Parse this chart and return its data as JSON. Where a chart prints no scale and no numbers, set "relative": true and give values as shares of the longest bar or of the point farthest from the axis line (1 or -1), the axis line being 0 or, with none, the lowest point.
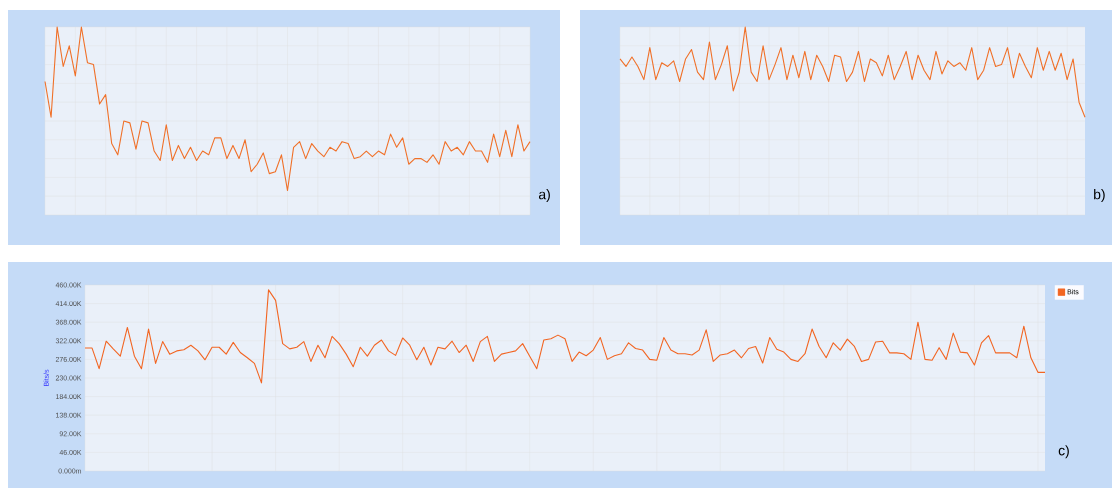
{
  "chart_data": [
    {
      "type": "line",
      "relative": true,
      "color": "#f07028",
      "grid": true,
      "tick_labels": false,
      "annotations": [
        "a)"
      ],
      "categories": [
        null,
        null,
        null,
        null,
        null,
        null,
        null,
        null,
        null,
        null,
        null,
        null,
        null,
        null,
        null,
        null,
        null,
        null,
        null,
        null,
        null,
        null,
        null,
        null,
        null,
        null,
        null,
        null,
        null,
        null,
        null,
        null,
        null,
        null,
        null,
        null,
        null,
        null,
        null,
        null,
        null,
        null,
        null,
        null,
        null,
        null,
        null,
        null,
        null,
        null,
        null,
        null,
        null,
        null,
        null,
        null,
        null,
        null,
        null,
        null,
        null,
        null,
        null,
        null,
        null,
        null,
        null,
        null,
        null,
        null,
        null,
        null,
        null,
        null,
        null,
        null,
        null,
        null,
        null,
        null,
        null
      ],
      "values": [
        0.71,
        0.52,
        1.0,
        0.79,
        0.9,
        0.74,
        1.0,
        0.81,
        0.8,
        0.59,
        0.64,
        0.38,
        0.32,
        0.5,
        0.49,
        0.35,
        0.5,
        0.49,
        0.34,
        0.29,
        0.48,
        0.29,
        0.37,
        0.3,
        0.36,
        0.29,
        0.34,
        0.32,
        0.41,
        0.41,
        0.3,
        0.37,
        0.3,
        0.4,
        0.23,
        0.27,
        0.33,
        0.22,
        0.23,
        0.32,
        0.13,
        0.36,
        0.39,
        0.3,
        0.38,
        0.34,
        0.31,
        0.36,
        0.34,
        0.39,
        0.38,
        0.3,
        0.31,
        0.34,
        0.31,
        0.34,
        0.32,
        0.43,
        0.36,
        0.41,
        0.27,
        0.3,
        0.3,
        0.28,
        0.32,
        0.27,
        0.39,
        0.34,
        0.36,
        0.32,
        0.39,
        0.34,
        0.34,
        0.28,
        0.43,
        0.31,
        0.45,
        0.31,
        0.48,
        0.34,
        0.39
      ]
    },
    {
      "type": "line",
      "relative": true,
      "color": "#f07028",
      "grid": true,
      "tick_labels": false,
      "annotations": [
        "b)"
      ],
      "categories": [
        null,
        null,
        null,
        null,
        null,
        null,
        null,
        null,
        null,
        null,
        null,
        null,
        null,
        null,
        null,
        null,
        null,
        null,
        null,
        null,
        null,
        null,
        null,
        null,
        null,
        null,
        null,
        null,
        null,
        null,
        null,
        null,
        null,
        null,
        null,
        null,
        null,
        null,
        null,
        null,
        null,
        null,
        null,
        null,
        null,
        null,
        null,
        null,
        null,
        null,
        null,
        null,
        null,
        null,
        null,
        null,
        null,
        null,
        null,
        null,
        null,
        null,
        null,
        null,
        null,
        null,
        null,
        null,
        null,
        null,
        null,
        null,
        null,
        null,
        null,
        null,
        null,
        null,
        null
      ],
      "values": [
        0.83,
        0.79,
        0.84,
        0.79,
        0.72,
        0.89,
        0.72,
        0.81,
        0.79,
        0.82,
        0.71,
        0.83,
        0.88,
        0.76,
        0.72,
        0.92,
        0.72,
        0.8,
        0.9,
        0.66,
        0.76,
        1.0,
        0.76,
        0.71,
        0.9,
        0.72,
        0.8,
        0.89,
        0.72,
        0.85,
        0.73,
        0.87,
        0.72,
        0.85,
        0.79,
        0.71,
        0.85,
        0.84,
        0.71,
        0.76,
        0.87,
        0.71,
        0.83,
        0.81,
        0.74,
        0.85,
        0.72,
        0.79,
        0.87,
        0.72,
        0.85,
        0.77,
        0.72,
        0.87,
        0.75,
        0.82,
        0.79,
        0.81,
        0.77,
        0.89,
        0.72,
        0.77,
        0.89,
        0.79,
        0.8,
        0.89,
        0.73,
        0.86,
        0.79,
        0.73,
        0.89,
        0.77,
        0.87,
        0.77,
        0.86,
        0.72,
        0.83,
        0.6,
        0.52
      ]
    },
    {
      "type": "line",
      "grid": true,
      "tick_labels": "y",
      "legend": "top right",
      "ylabel": "Bits/s",
      "annotations": [
        "c)"
      ],
      "ylim": [
        0,
        460
      ],
      "yticks": [
        {
          "value": 0,
          "label": "0.000m"
        },
        {
          "value": 46,
          "label": "46.00K"
        },
        {
          "value": 92,
          "label": "92.00K"
        },
        {
          "value": 138,
          "label": "138.00K"
        },
        {
          "value": 184,
          "label": "184.00K"
        },
        {
          "value": 230,
          "label": "230.00K"
        },
        {
          "value": 276,
          "label": "276.00K"
        },
        {
          "value": 322,
          "label": "322.00K"
        },
        {
          "value": 368,
          "label": "368.00K"
        },
        {
          "value": 414,
          "label": "414.00K"
        },
        {
          "value": 460,
          "label": "460.00K"
        }
      ],
      "categories": [
        null,
        null,
        null,
        null,
        null,
        null,
        null,
        null,
        null,
        null,
        null,
        null,
        null,
        null,
        null,
        null,
        null,
        null,
        null,
        null,
        null,
        null,
        null,
        null,
        null,
        null,
        null,
        null,
        null,
        null,
        null,
        null,
        null,
        null,
        null,
        null,
        null,
        null,
        null,
        null,
        null,
        null,
        null,
        null,
        null,
        null,
        null,
        null,
        null,
        null,
        null,
        null,
        null,
        null,
        null,
        null,
        null,
        null,
        null,
        null,
        null,
        null,
        null,
        null,
        null,
        null,
        null,
        null,
        null,
        null,
        null,
        null,
        null,
        null,
        null,
        null,
        null,
        null,
        null,
        null,
        null,
        null,
        null,
        null,
        null,
        null,
        null,
        null,
        null,
        null,
        null,
        null,
        null,
        null,
        null,
        null,
        null,
        null,
        null,
        null,
        null,
        null,
        null,
        null,
        null,
        null,
        null,
        null,
        null,
        null,
        null,
        null,
        null,
        null,
        null,
        null,
        null,
        null,
        null,
        null,
        null,
        null,
        null,
        null,
        null,
        null,
        null,
        null,
        null,
        null,
        null,
        null,
        null,
        null,
        null,
        null,
        null
      ],
      "series": [
        {
          "name": "Bits",
          "color": "#f26522",
          "values": [
            304,
            304,
            253,
            321,
            302,
            284,
            355,
            284,
            253,
            351,
            266,
            320,
            289,
            297,
            300,
            311,
            297,
            275,
            306,
            306,
            289,
            318,
            293,
            280,
            266,
            218,
            448,
            422,
            315,
            302,
            306,
            320,
            271,
            311,
            280,
            333,
            315,
            289,
            258,
            306,
            284,
            311,
            324,
            297,
            286,
            329,
            311,
            275,
            306,
            262,
            306,
            302,
            321,
            293,
            311,
            271,
            320,
            333,
            271,
            289,
            293,
            297,
            315,
            284,
            253,
            324,
            327,
            336,
            327,
            271,
            294,
            285,
            299,
            330,
            276,
            285,
            290,
            317,
            303,
            299,
            276,
            274,
            330,
            299,
            290,
            290,
            287,
            299,
            349,
            271,
            287,
            290,
            299,
            280,
            303,
            308,
            267,
            330,
            301,
            294,
            276,
            271,
            290,
            351,
            308,
            280,
            317,
            299,
            326,
            308,
            271,
            276,
            319,
            321,
            292,
            292,
            290,
            276,
            368,
            276,
            274,
            305,
            276,
            341,
            294,
            292,
            262,
            317,
            335,
            292,
            292,
            292,
            280,
            358,
            280,
            244,
            244
          ]
        }
      ]
    }
  ]
}
